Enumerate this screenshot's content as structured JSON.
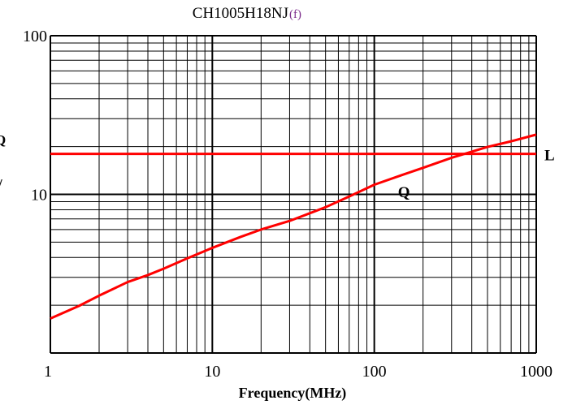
{
  "chart_data": {
    "type": "line",
    "title": "CH1005H18NJ",
    "title_suffix": "(f)",
    "xlabel": "Frequency(MHz)",
    "ylabel": "",
    "x_scale": "log",
    "y_scale": "log",
    "xlim": [
      1,
      1000
    ],
    "ylim": [
      1,
      100
    ],
    "grid": true,
    "x_ticks": [
      {
        "value": 1,
        "label": "1"
      },
      {
        "value": 10,
        "label": "10"
      },
      {
        "value": 100,
        "label": "100"
      },
      {
        "value": 1000,
        "label": "1000"
      }
    ],
    "y_ticks": [
      {
        "value": 10,
        "label": "10"
      },
      {
        "value": 100,
        "label": "100"
      }
    ],
    "series": [
      {
        "name": "L",
        "color": "#ff0000",
        "x": [
          1,
          10,
          100,
          1000
        ],
        "y": [
          18,
          18,
          18,
          18
        ]
      },
      {
        "name": "Q",
        "color": "#ff0000",
        "x": [
          1,
          1.5,
          2,
          3,
          4,
          5,
          7,
          10,
          15,
          20,
          30,
          50,
          70,
          100,
          150,
          200,
          300,
          500,
          700,
          1000
        ],
        "y": [
          1.65,
          1.98,
          2.3,
          2.8,
          3.1,
          3.4,
          3.95,
          4.6,
          5.4,
          6.0,
          6.8,
          8.3,
          9.7,
          11.5,
          13.3,
          14.7,
          17.0,
          19.9,
          21.6,
          23.8
        ]
      }
    ],
    "left_edge_glyphs": [
      "Q",
      "/"
    ]
  }
}
